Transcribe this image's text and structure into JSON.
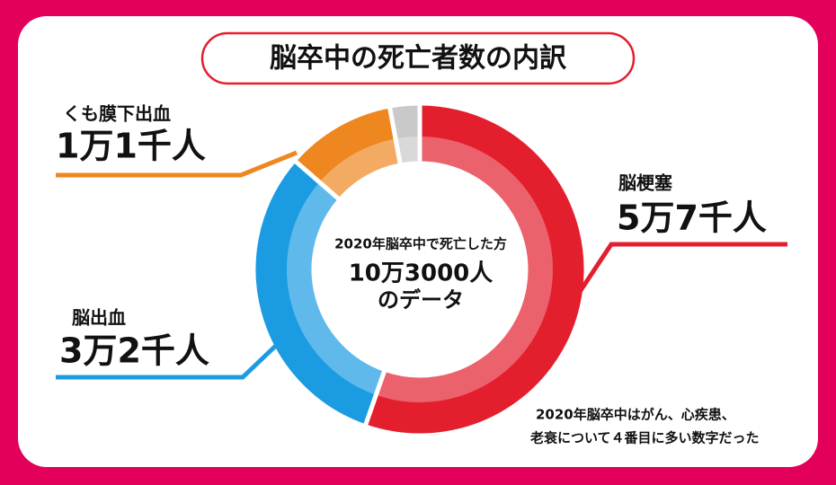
{
  "chart_data": {
    "type": "donut",
    "title": "脳卒中の死亡者数の内訳",
    "center_label": [
      "2020年脳卒中で死亡した方",
      "10万3000人",
      "のデータ"
    ],
    "categories": [
      "脳梗塞",
      "脳出血",
      "くも膜下出血",
      null
    ],
    "values": [
      57000,
      32000,
      11000,
      3000
    ],
    "value_labels": [
      "5万7千人",
      "3万2千人",
      "1万1千人",
      null
    ],
    "colors": [
      "#e31f2e",
      "#1b9ce2",
      "#ee8720",
      "#c9c9c9"
    ],
    "annotation": [
      "2020年脳卒中はがん、心疾患、",
      "老衰について４番目に多い数字だった"
    ]
  }
}
